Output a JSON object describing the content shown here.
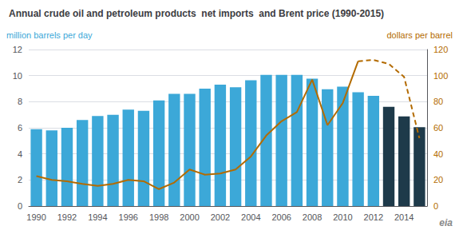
{
  "chart_data": {
    "type": "bar",
    "title": "Annual crude oil and petroleum products  net imports  and Brent price (1990-2015)",
    "ylabel": "million barrels per day",
    "y2label": "dollars per barrel",
    "categories": [
      "1990",
      null,
      "1992",
      null,
      "1994",
      null,
      "1996",
      null,
      "1998",
      null,
      "2000",
      null,
      "2002",
      null,
      "2004",
      null,
      "2006",
      null,
      "2008",
      null,
      "2010",
      null,
      "2012",
      null,
      "2014",
      null
    ],
    "series": [
      {
        "type": "bar",
        "colors": [
          "#3ca8d8",
          "#3ca8d8",
          "#3ca8d8",
          "#3ca8d8",
          "#3ca8d8",
          "#3ca8d8",
          "#3ca8d8",
          "#3ca8d8",
          "#3ca8d8",
          "#3ca8d8",
          "#3ca8d8",
          "#3ca8d8",
          "#3ca8d8",
          "#3ca8d8",
          "#3ca8d8",
          "#3ca8d8",
          "#3ca8d8",
          "#3ca8d8",
          "#3ca8d8",
          "#3ca8d8",
          "#3ca8d8",
          "#3ca8d8",
          "#3ca8d8",
          "#1e3a4a",
          "#1e3a4a",
          "#1e3a4a"
        ],
        "values": [
          5.9,
          5.8,
          6.0,
          6.6,
          6.9,
          7.0,
          7.4,
          7.3,
          8.1,
          8.6,
          8.6,
          9.0,
          9.3,
          9.1,
          9.65,
          10.05,
          10.05,
          10.05,
          9.76,
          8.95,
          9.15,
          8.73,
          8.45,
          7.6,
          6.87,
          6.05
        ]
      },
      {
        "type": "line",
        "axis": "y2",
        "color": "#b36b00",
        "line_style": "solid",
        "values": [
          23,
          20,
          19,
          17,
          15.5,
          17,
          20,
          19,
          13,
          18,
          28,
          24,
          25,
          28,
          38,
          54,
          65,
          72,
          97,
          62,
          79,
          111,
          null,
          null,
          null,
          null
        ]
      },
      {
        "type": "line",
        "axis": "y2",
        "color": "#b36b00",
        "line_style": "dashed",
        "values": [
          null,
          null,
          null,
          null,
          null,
          null,
          null,
          null,
          null,
          null,
          null,
          null,
          null,
          null,
          null,
          null,
          null,
          null,
          null,
          null,
          null,
          111,
          112,
          109,
          99,
          52
        ]
      }
    ],
    "ylim": [
      0,
      12
    ],
    "yticks": [
      0,
      2,
      4,
      6,
      8,
      10,
      12
    ],
    "y2lim": [
      0,
      120
    ],
    "y2ticks": [
      0,
      20,
      40,
      60,
      80,
      100,
      120
    ],
    "grid": true,
    "legend": false,
    "annotations": [
      {
        "text": "eia"
      }
    ]
  }
}
